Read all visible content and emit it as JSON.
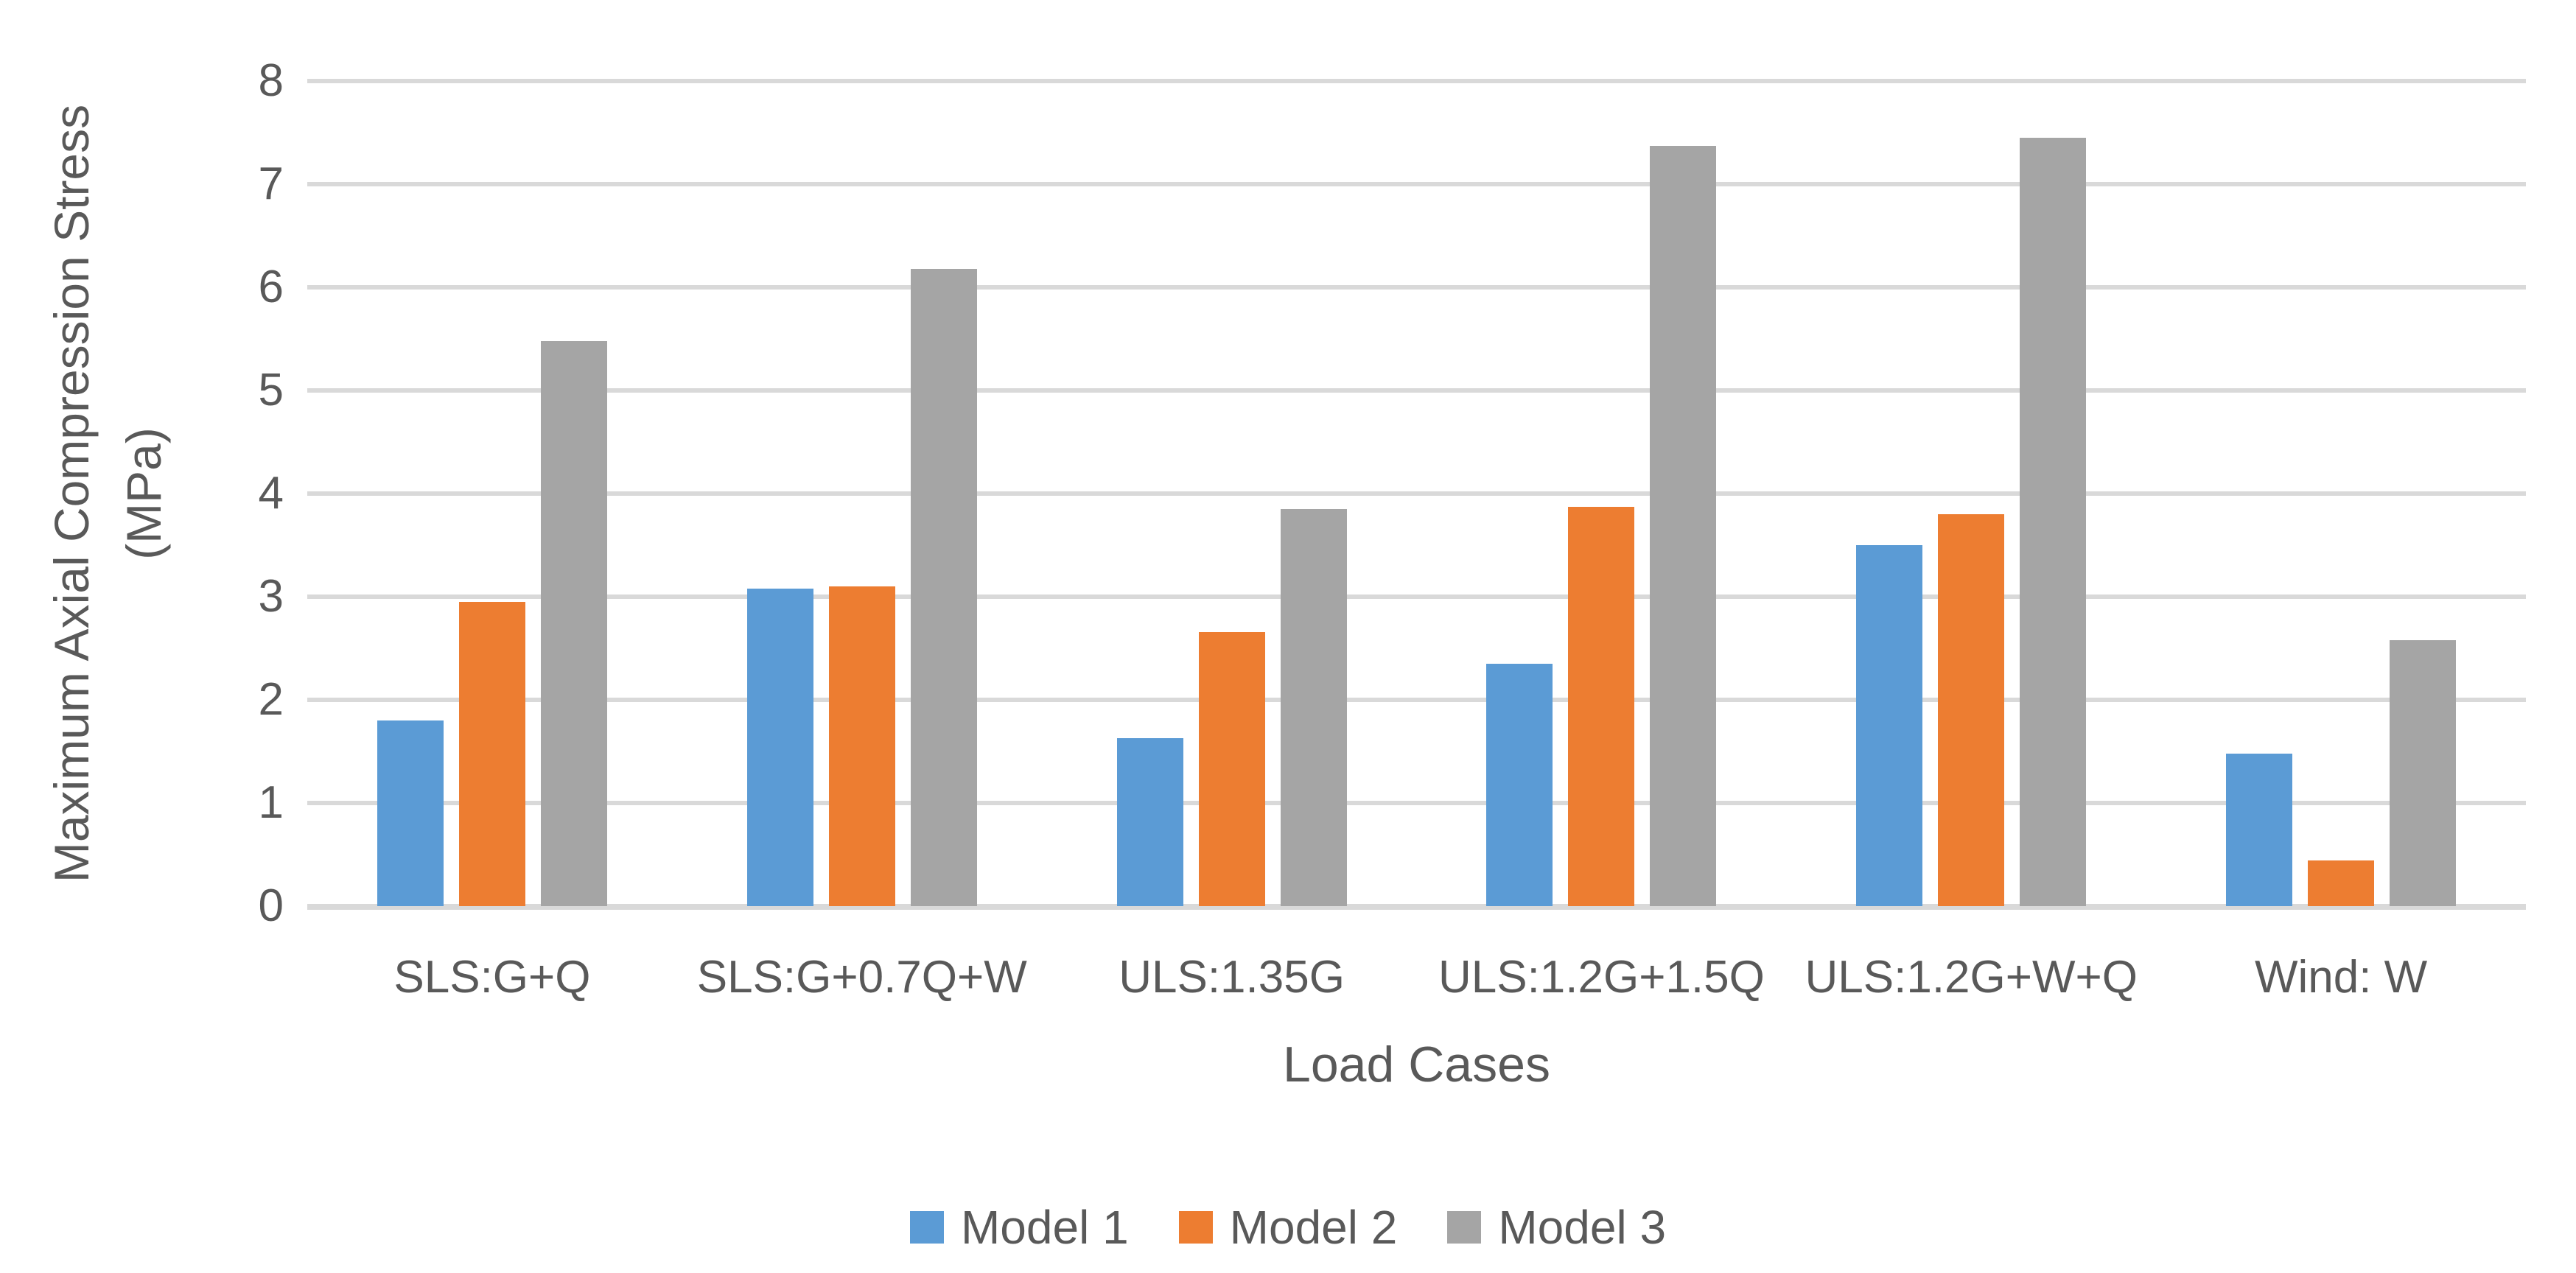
{
  "chart_data": {
    "type": "bar",
    "title": "",
    "categories": [
      "SLS:G+Q",
      "SLS:G+0.7Q+W",
      "ULS:1.35G",
      "ULS:1.2G+1.5Q",
      "ULS:1.2G+W+Q",
      "Wind: W"
    ],
    "series": [
      {
        "name": "Model 1",
        "color": "#5B9BD5",
        "values": [
          1.8,
          3.08,
          1.63,
          2.35,
          3.5,
          1.48
        ]
      },
      {
        "name": "Model 2",
        "color": "#ED7D31",
        "values": [
          2.95,
          3.1,
          2.66,
          3.87,
          3.8,
          0.44
        ]
      },
      {
        "name": "Model 3",
        "color": "#A5A5A5",
        "values": [
          5.48,
          6.18,
          3.85,
          7.37,
          7.45,
          2.58
        ]
      }
    ],
    "xlabel": "Load Cases",
    "ylabel": "Maximum Axial Compression Stress (MPa)",
    "ylabel_lines": [
      "Maximum Axial Compression Stress",
      "(MPa)"
    ],
    "ylim": [
      0,
      8
    ],
    "yticks": [
      0,
      1,
      2,
      3,
      4,
      5,
      6,
      7,
      8
    ],
    "grid": true,
    "legend_position": "bottom"
  },
  "style": {
    "text_color": "#595959",
    "gridline_color": "#D9D9D9",
    "background": "#FFFFFF"
  }
}
